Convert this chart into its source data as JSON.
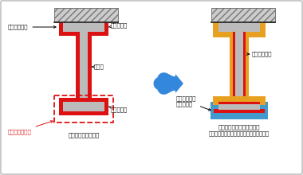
{
  "bg_color": "#eeeeee",
  "panel_color": "#ffffff",
  "red": "#dd1111",
  "gray": "#bbbbbb",
  "steel_gray": "#aaaaaa",
  "gold": "#e8a020",
  "blue_fill": "#4499cc",
  "arrow_blue": "#3388dd",
  "hatch_fc": "#cccccc",
  "dashed_red": "#dd1111",
  "text_color": "#111111",
  "red_text": "#dd1111",
  "left_label1": "鎹押えが必要",
  "left_label2": "施工難度（高）",
  "left_label3": "上フランジ",
  "left_label4": "ウェブ",
  "left_label5": "下フランジ",
  "left_caption": "従来工法（粒状綿）",
  "right_label1": "鎹押えが不要",
  "right_label2": "ロックウール\nフェルト巻",
  "right_caption1": "ハイブリッド耐火被覆工法",
  "right_caption2": "（ロックウールフェルト＋高耐熱粒状綿）"
}
